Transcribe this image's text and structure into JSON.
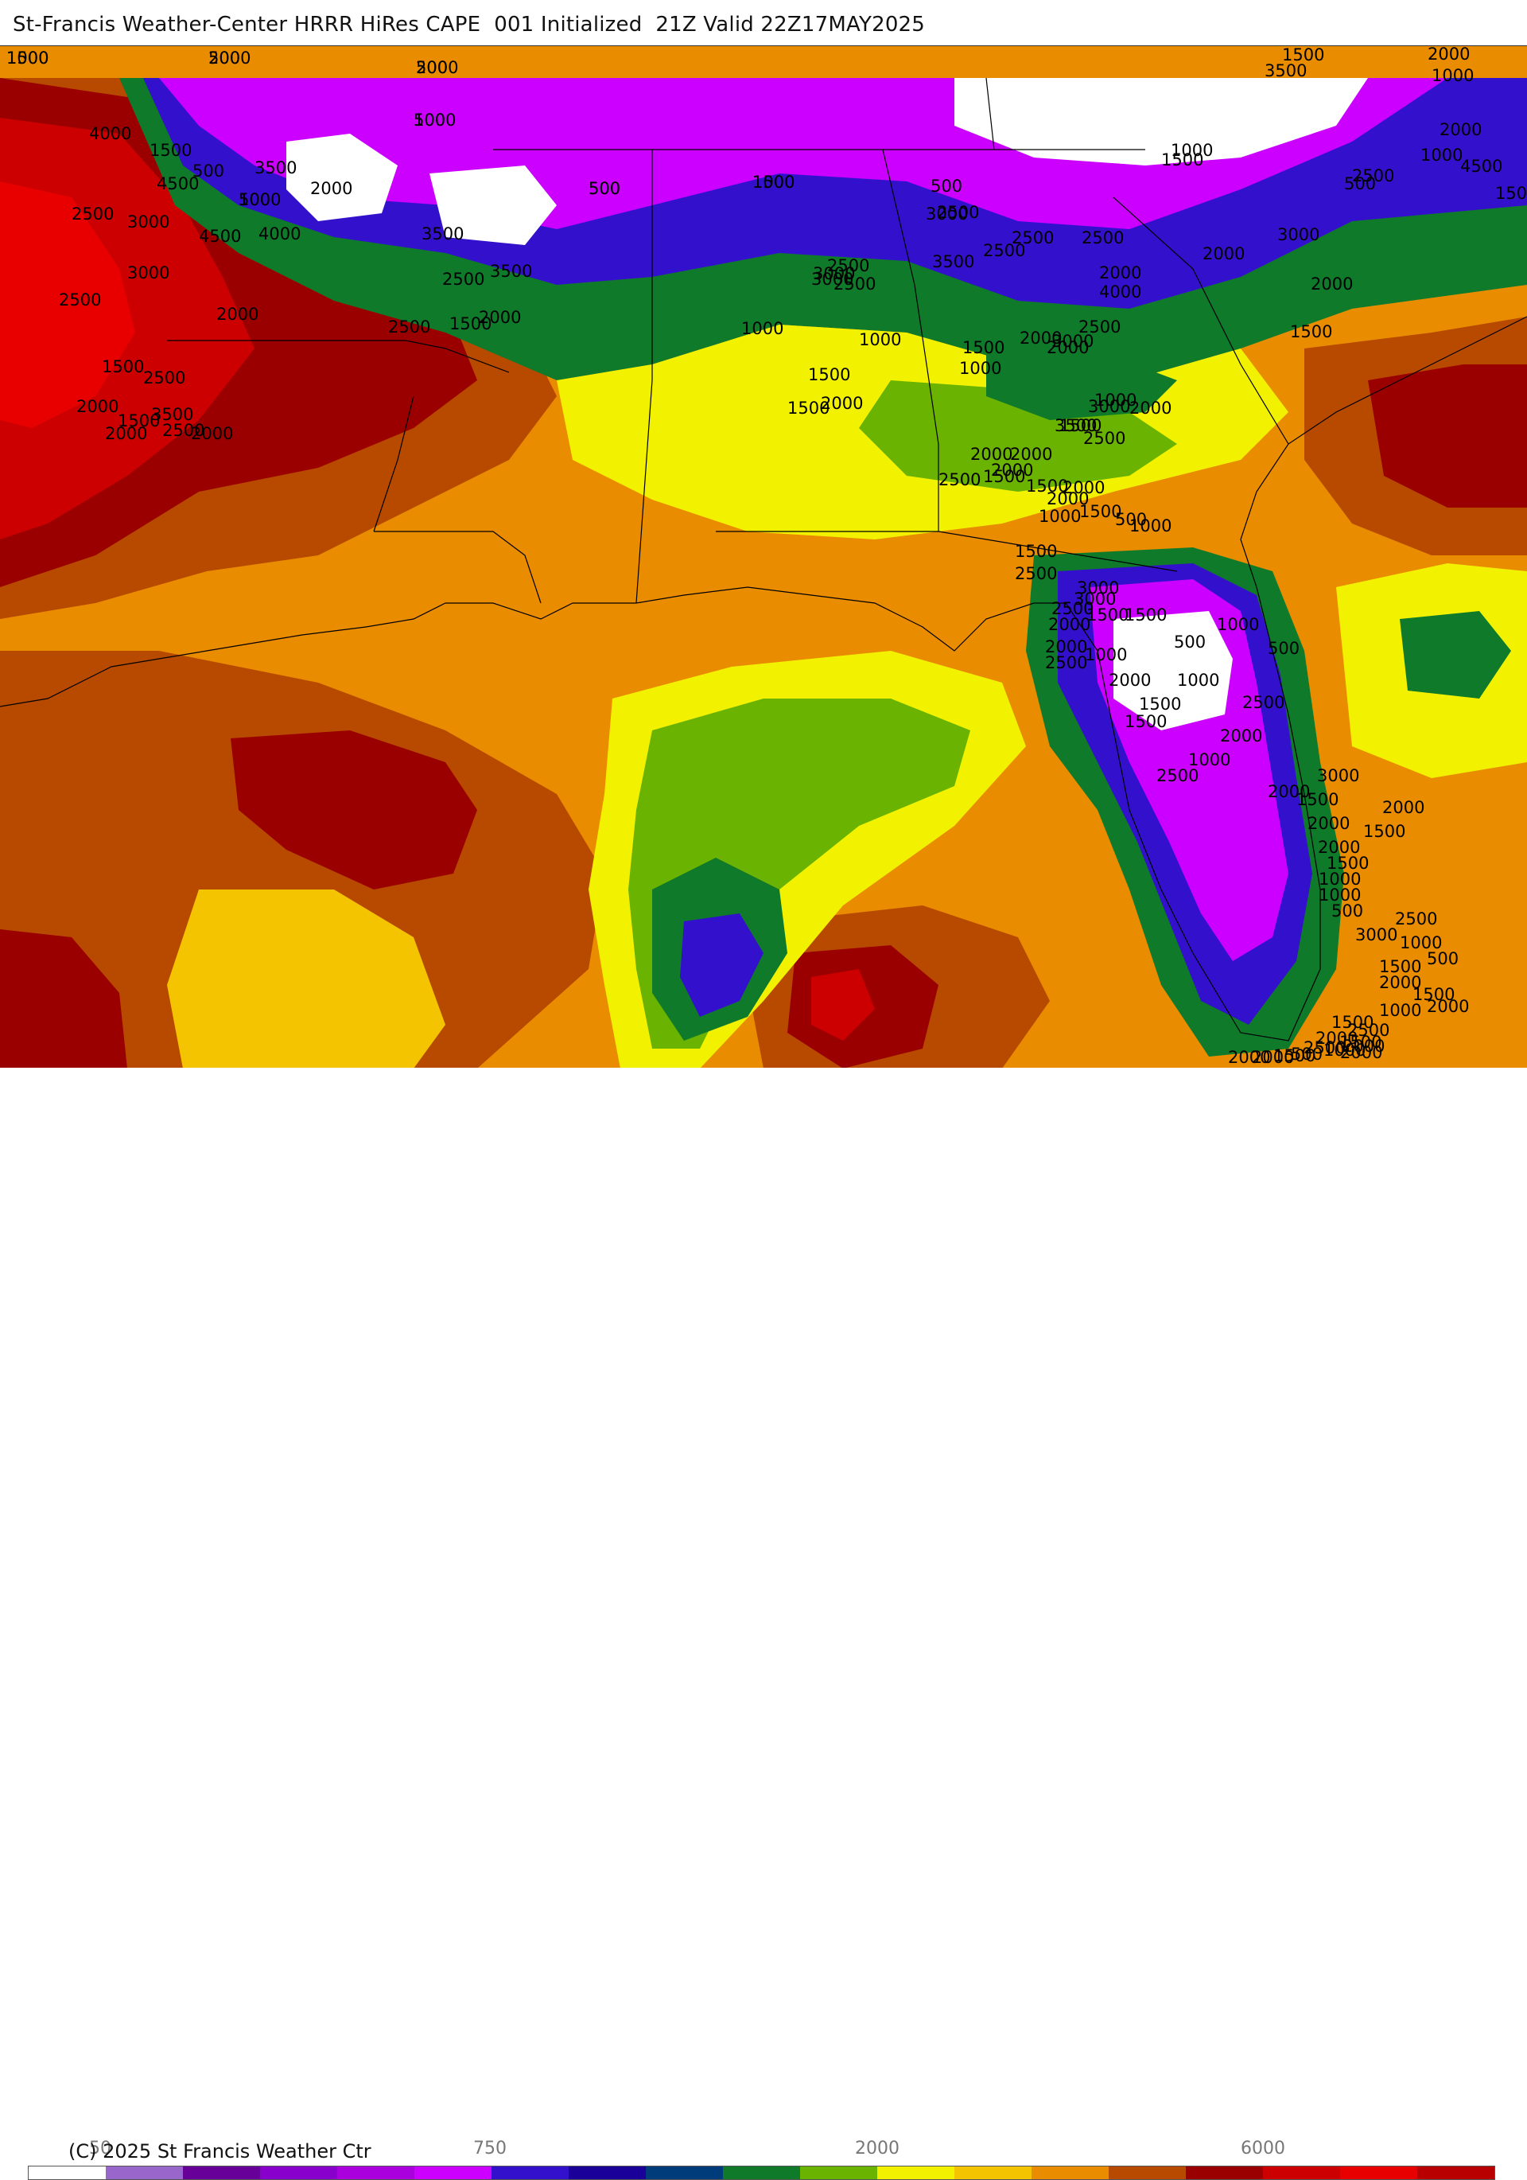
{
  "header": {
    "title": "St-Francis Weather-Center HRRR HiRes CAPE  001 Initialized  21Z Valid 22Z17MAY2025"
  },
  "colors": {
    "c500": "#cc00ff",
    "c750": "#8800cc",
    "c1000": "#3311cc",
    "c1250": "#003c7a",
    "c1500": "#0f7a2a",
    "c1750": "#6ab300",
    "c2000": "#f2f200",
    "c2250": "#f5c400",
    "c2500": "#ea8c00",
    "c3000": "#b84a00",
    "c3500": "#9b0000",
    "c4000": "#cc0000",
    "c4500": "#e80000",
    "none": "#ffffff",
    "border": "#000000"
  },
  "map": {
    "contour_labels": [
      "1000",
      "500",
      "500",
      "1000",
      "1000",
      "500",
      "1000",
      "500",
      "1000",
      "500",
      "1500",
      "1500",
      "2000",
      "1000",
      "3500",
      "2000",
      "1000",
      "4500",
      "2500",
      "4000",
      "1500",
      "500",
      "2500",
      "4500",
      "3000",
      "3500",
      "2000",
      "1500",
      "3000",
      "4500",
      "4000",
      "3500",
      "3500",
      "2500",
      "2500",
      "2000",
      "2500",
      "1500",
      "2000",
      "2500",
      "3000",
      "3500",
      "2500",
      "3000",
      "2000",
      "2000",
      "2000",
      "1500",
      "4000",
      "3000",
      "2500",
      "2000",
      "2000",
      "2500",
      "1500",
      "2000",
      "1500",
      "2000",
      "3500",
      "2500",
      "2000",
      "2500",
      "3000",
      "2500",
      "3000",
      "2500",
      "2500",
      "1500",
      "1000",
      "1500",
      "1000",
      "1000",
      "1500",
      "2000",
      "1000",
      "2000",
      "3500",
      "2000",
      "2500",
      "1500",
      "2000",
      "2500",
      "3000",
      "1500",
      "2000",
      "1500",
      "2000",
      "1500",
      "1000",
      "500",
      "1000",
      "2000",
      "1500",
      "2500",
      "3000",
      "3000",
      "2500",
      "1500",
      "2000",
      "2000",
      "2500",
      "500",
      "1000",
      "500",
      "1500",
      "1000",
      "2000",
      "1000",
      "1500",
      "2500",
      "2000",
      "1500",
      "1000",
      "2500",
      "2000",
      "3000",
      "1500",
      "2000",
      "2000",
      "1500",
      "2000",
      "1500",
      "1000",
      "1000",
      "500",
      "2500",
      "3000",
      "1000",
      "500",
      "1500",
      "2000",
      "1500",
      "2000",
      "1000",
      "1500",
      "2500",
      "2000",
      "1500",
      "2000",
      "2500",
      "1000",
      "2000",
      "500",
      "1500",
      "2000",
      "2000",
      "1500",
      "2000",
      "2000",
      "500",
      "500",
      "500",
      "1500"
    ]
  },
  "legend": {
    "colors": [
      "#ffffff",
      "#9966cc",
      "#660099",
      "#8800cc",
      "#aa00dd",
      "#cc00ff",
      "#3311cc",
      "#1a0099",
      "#003c7a",
      "#0f7a2a",
      "#6ab300",
      "#f2f200",
      "#f5c400",
      "#ea8c00",
      "#b84a00",
      "#9b0000",
      "#cc0000",
      "#e80000",
      "#b80000",
      "#7a4a4a",
      "#888888",
      "#99aabb",
      "#aad8e6"
    ],
    "ticks": [
      "50",
      "750",
      "2000",
      "6000"
    ],
    "copyright": "(C) 2025 St Francis Weather Ctr"
  }
}
